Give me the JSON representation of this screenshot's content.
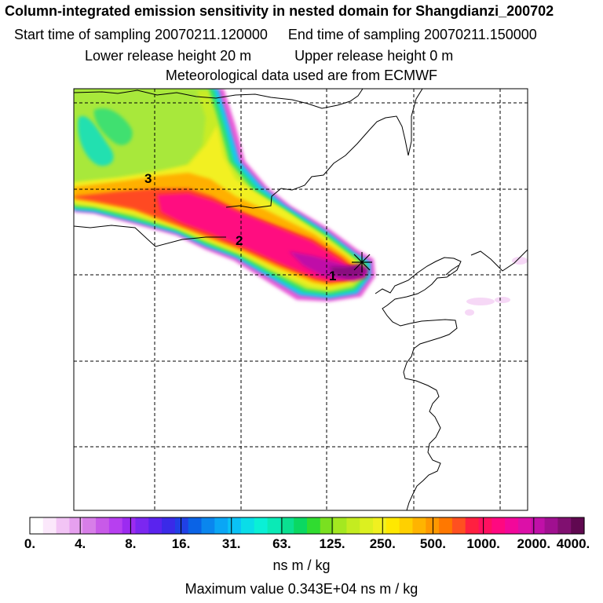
{
  "header": {
    "title": "Column-integrated emission sensitivity in nested domain for Shangdianzi_200702",
    "start_label": "Start time of sampling 20070211.120000",
    "end_label": "End time of sampling 20070211.150000",
    "lower_label": "Lower release height   20 m",
    "upper_label": "Upper release height    0 m",
    "met_label": "Meteorological data used are from ECMWF"
  },
  "map": {
    "markers": [
      "1",
      "2",
      "3"
    ],
    "receptor_symbol": "+"
  },
  "colorbar": {
    "ticks": [
      "0.",
      "4.",
      "8.",
      "16.",
      "31.",
      "63.",
      "125.",
      "250.",
      "500.",
      "1000.",
      "2000.",
      "4000."
    ],
    "colors": [
      "#ffffff",
      "#fbe8fb",
      "#f2c4f5",
      "#e6a0ef",
      "#d77ee8",
      "#c85ae8",
      "#b73ff0",
      "#9c2bf0",
      "#7b27f0",
      "#5a23ee",
      "#3a2ae8",
      "#2040e6",
      "#0a63e6",
      "#0a86ee",
      "#0aa6f5",
      "#0ac2f6",
      "#0adde8",
      "#0af0d6",
      "#0aeab6",
      "#0ae090",
      "#0ad862",
      "#30dc30",
      "#7ae020",
      "#a4e820",
      "#c4ec20",
      "#dcf020",
      "#f0f020",
      "#ffe800",
      "#ffd000",
      "#ffb400",
      "#ff9800",
      "#ff7800",
      "#ff5020",
      "#ff2040",
      "#ff1060",
      "#ff0880",
      "#f2089a",
      "#dc10a8",
      "#c010a8",
      "#a01090",
      "#801070",
      "#600850"
    ],
    "units": "ns m / kg",
    "max_value": "Maximum value  0.343E+04 ns m / kg"
  }
}
